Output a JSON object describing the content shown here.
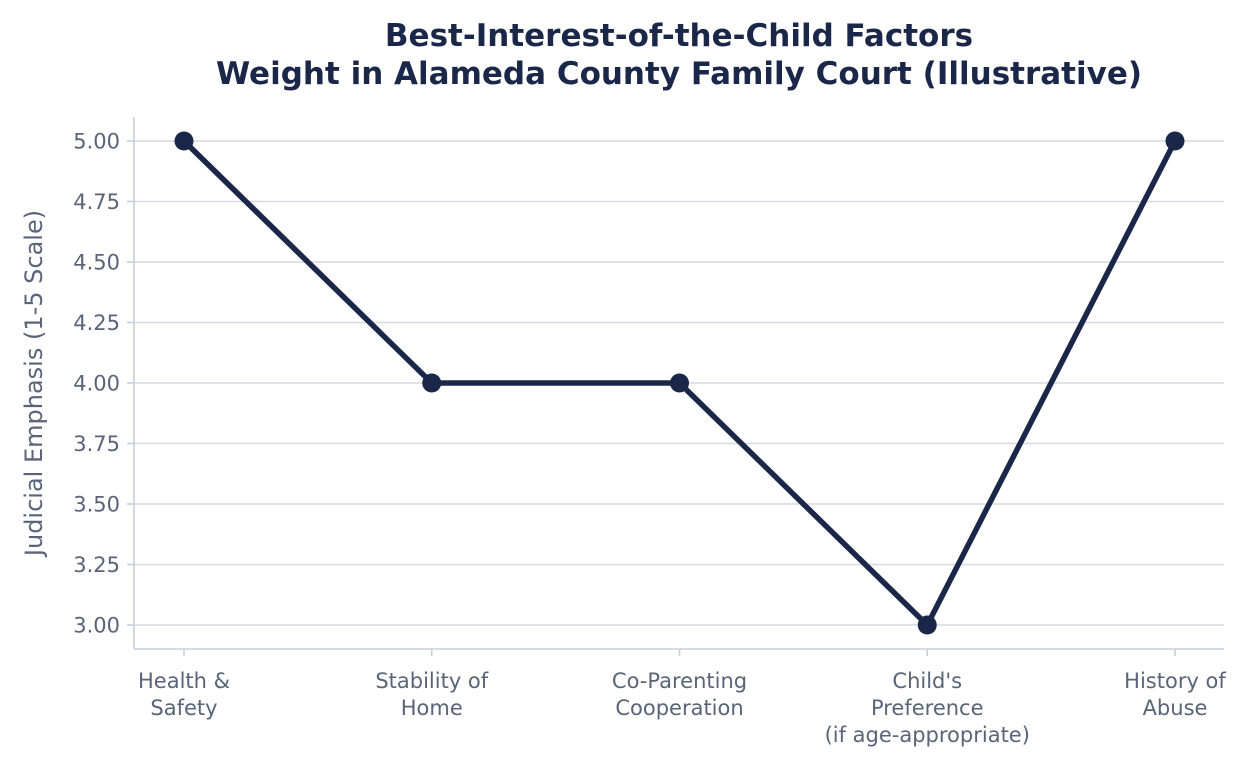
{
  "colors": {
    "line": "#1b2748",
    "title": "#1b2748",
    "text": "#5a6478",
    "grid": "#d3dae4",
    "axis": "#c7cfdb",
    "background": "#ffffff"
  },
  "chart_data": {
    "type": "line",
    "title_lines": [
      "Best-Interest-of-the-Child Factors",
      "Weight in Alameda County Family Court (Illustrative)"
    ],
    "ylabel": "Judicial Emphasis (1-5 Scale)",
    "xlabel": "",
    "categories": [
      [
        "Health &",
        "Safety"
      ],
      [
        "Stability of",
        "Home"
      ],
      [
        "Co-Parenting",
        "Cooperation"
      ],
      [
        "Child's",
        "Preference",
        "(if age-appropriate)"
      ],
      [
        "History of",
        "Abuse"
      ]
    ],
    "values": [
      5,
      4,
      4,
      3,
      5
    ],
    "ylim": [
      2.9,
      5.1
    ],
    "yticks": [
      3.0,
      3.25,
      3.5,
      3.75,
      4.0,
      4.25,
      4.5,
      4.75,
      5.0
    ],
    "ytick_labels": [
      "3.00",
      "3.25",
      "3.50",
      "3.75",
      "4.00",
      "4.25",
      "4.50",
      "4.75",
      "5.00"
    ],
    "grid": "horizontal",
    "legend": "none",
    "markers": true
  }
}
